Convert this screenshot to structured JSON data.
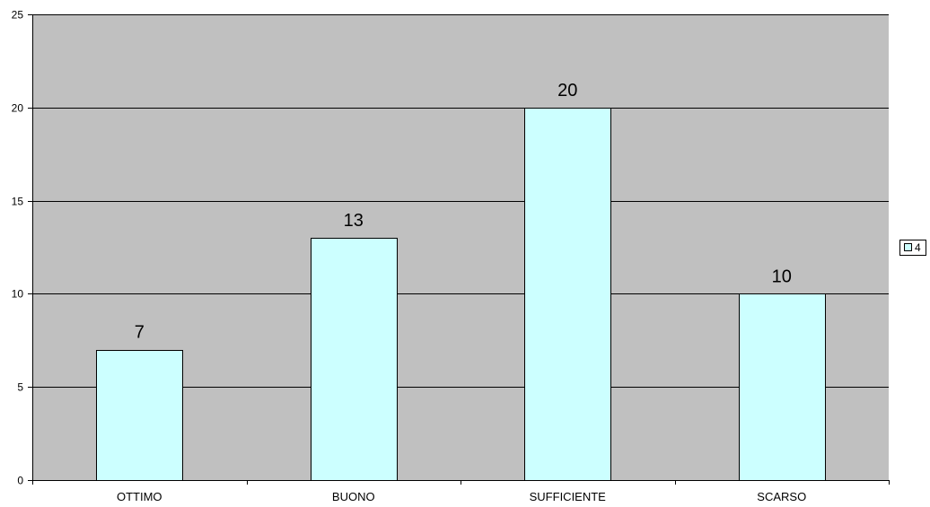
{
  "chart_data": {
    "type": "bar",
    "categories": [
      "OTTIMO",
      "BUONO",
      "SUFFICIENTE",
      "SCARSO"
    ],
    "series": [
      {
        "name": "4",
        "values": [
          7,
          13,
          20,
          10
        ]
      }
    ],
    "ylim": [
      0,
      25
    ],
    "yticks": [
      0,
      5,
      10,
      15,
      20,
      25
    ],
    "grid": true,
    "legend_position": "right",
    "data_labels": true,
    "colors": {
      "plot_background": "#c0c0c0",
      "bar_fill": "#ccffff",
      "bar_stroke": "#000000",
      "gridline": "#000000"
    }
  }
}
